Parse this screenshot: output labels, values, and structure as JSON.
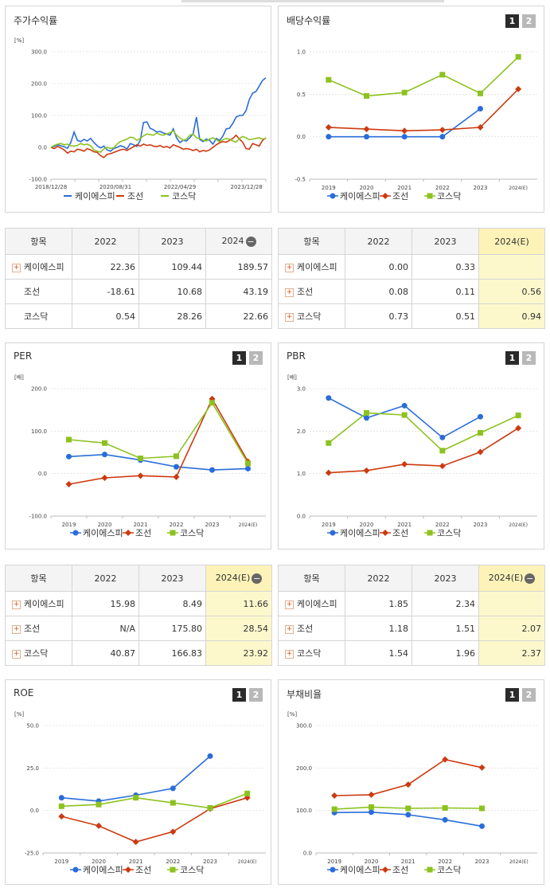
{
  "series_colors": {
    "keyi": "#2a6dd9",
    "joseon": "#cc3a10",
    "kosdaq": "#8cc21f"
  },
  "legend": [
    "케이에스피",
    "조선",
    "코스닥"
  ],
  "buttons": {
    "one": "1",
    "two": "2"
  },
  "panels": {
    "stock": {
      "title": "주가수익률",
      "unit": "[%]"
    },
    "dividend": {
      "title": "배당수익률",
      "unit": ""
    },
    "per": {
      "title": "PER",
      "unit": "[배]"
    },
    "pbr": {
      "title": "PBR",
      "unit": "[배]"
    },
    "roe": {
      "title": "ROE",
      "unit": "[%]"
    },
    "debt": {
      "title": "부채비율",
      "unit": "[%]"
    }
  },
  "chart_data": [
    {
      "id": "stock",
      "type": "line",
      "title": "주가수익률",
      "ylabel": "[%]",
      "y_ticks": [
        "300.0",
        "200.0",
        "100.0",
        "0.0",
        "-100.0"
      ],
      "ylim": [
        -100,
        300
      ],
      "x_ticks": [
        "2018/12/28",
        "2020/08/31",
        "2022/04/29",
        "2023/12/28"
      ],
      "series": [
        {
          "name": "케이에스피",
          "values": [
            0,
            3,
            8,
            5,
            2,
            -3,
            15,
            48,
            22,
            18,
            25,
            20,
            28,
            15,
            5,
            -2,
            4,
            -8,
            -12,
            -4,
            0,
            5,
            2,
            -5,
            12,
            8,
            3,
            22,
            78,
            80,
            60,
            55,
            48,
            50,
            45,
            42,
            38,
            58,
            30,
            15,
            22,
            20,
            30,
            42,
            95,
            25,
            18,
            26,
            22,
            10,
            28,
            22,
            35,
            58,
            60,
            75,
            95,
            100,
            100,
            115,
            150,
            170,
            175,
            192,
            210,
            218
          ]
        },
        {
          "name": "조선",
          "values": [
            0,
            -4,
            3,
            -2,
            -8,
            -18,
            -12,
            -14,
            -6,
            -8,
            -12,
            -4,
            -8,
            -14,
            -16,
            -26,
            -32,
            -22,
            -20,
            -16,
            -12,
            -8,
            -6,
            -10,
            -4,
            2,
            8,
            4,
            10,
            6,
            8,
            4,
            2,
            6,
            0,
            3,
            -2,
            8,
            4,
            0,
            -6,
            -4,
            -6,
            -10,
            -6,
            -14,
            -10,
            -12,
            -8,
            0,
            8,
            14,
            18,
            16,
            22,
            28,
            38,
            26,
            16,
            -4,
            -6,
            12,
            8,
            4,
            22,
            30
          ]
        },
        {
          "name": "코스닥",
          "values": [
            0,
            6,
            10,
            12,
            8,
            10,
            5,
            4,
            6,
            12,
            8,
            10,
            5,
            -8,
            -12,
            -15,
            -5,
            0,
            -3,
            -2,
            10,
            18,
            22,
            26,
            32,
            30,
            22,
            28,
            36,
            42,
            40,
            38,
            45,
            40,
            38,
            42,
            46,
            52,
            38,
            30,
            22,
            26,
            38,
            42,
            30,
            28,
            22,
            20,
            26,
            30,
            24,
            18,
            24,
            28,
            26,
            20,
            16,
            28,
            34,
            30,
            24,
            26,
            28,
            30,
            26,
            28
          ]
        }
      ]
    },
    {
      "id": "dividend",
      "type": "line",
      "title": "배당수익률",
      "categories": [
        "2019",
        "2020",
        "2021",
        "2022",
        "2023",
        "2024(E)"
      ],
      "y_ticks": [
        "1.0",
        "0.5",
        "0.0",
        "-0.5"
      ],
      "ylim": [
        -0.5,
        1.0
      ],
      "series": [
        {
          "name": "케이에스피",
          "values": [
            0.0,
            0.0,
            0.0,
            0.0,
            0.33,
            null
          ]
        },
        {
          "name": "조선",
          "values": [
            0.11,
            0.09,
            0.07,
            0.08,
            0.11,
            0.56
          ]
        },
        {
          "name": "코스닥",
          "values": [
            0.67,
            0.48,
            0.52,
            0.73,
            0.51,
            0.94
          ]
        }
      ]
    },
    {
      "id": "per",
      "type": "line",
      "title": "PER",
      "categories": [
        "2019",
        "2020",
        "2021",
        "2022",
        "2023",
        "2024(E)"
      ],
      "y_ticks": [
        "200.0",
        "100.0",
        "0.0",
        "-100.0"
      ],
      "ylim": [
        -100,
        200
      ],
      "series": [
        {
          "name": "케이에스피",
          "values": [
            40,
            45,
            32,
            15.98,
            8.49,
            11.66
          ]
        },
        {
          "name": "조선",
          "values": [
            -25,
            -10,
            -5,
            -8,
            175.8,
            28.54
          ]
        },
        {
          "name": "코스닥",
          "values": [
            80,
            72,
            36,
            40.87,
            166.83,
            23.92
          ]
        }
      ]
    },
    {
      "id": "pbr",
      "type": "line",
      "title": "PBR",
      "categories": [
        "2019",
        "2020",
        "2021",
        "2022",
        "2023",
        "2024(E)"
      ],
      "y_ticks": [
        "3.0",
        "2.0",
        "1.0",
        "0.0"
      ],
      "ylim": [
        0,
        3
      ],
      "series": [
        {
          "name": "케이에스피",
          "values": [
            2.78,
            2.31,
            2.6,
            1.85,
            2.34,
            null
          ]
        },
        {
          "name": "조선",
          "values": [
            1.02,
            1.07,
            1.22,
            1.18,
            1.51,
            2.07
          ]
        },
        {
          "name": "코스닥",
          "values": [
            1.72,
            2.43,
            2.38,
            1.54,
            1.96,
            2.37
          ]
        }
      ]
    },
    {
      "id": "roe",
      "type": "line",
      "title": "ROE",
      "categories": [
        "2019",
        "2020",
        "2021",
        "2022",
        "2023",
        "2024(E)"
      ],
      "y_ticks": [
        "50.0",
        "25.0",
        "0.0",
        "-25.0"
      ],
      "ylim": [
        -25,
        50
      ],
      "series": [
        {
          "name": "케이에스피",
          "values": [
            7.5,
            5.5,
            9,
            13,
            32,
            null
          ]
        },
        {
          "name": "조선",
          "values": [
            -3.5,
            -9,
            -18.5,
            -12.5,
            1,
            7.5
          ]
        },
        {
          "name": "코스닥",
          "values": [
            2.5,
            3.5,
            7.5,
            4.5,
            1.5,
            10
          ]
        }
      ]
    },
    {
      "id": "debt",
      "type": "line",
      "title": "부채비율",
      "categories": [
        "2019",
        "2020",
        "2021",
        "2022",
        "2023",
        "2024(E)"
      ],
      "y_ticks": [
        "300.0",
        "200.0",
        "100.0",
        "0.0"
      ],
      "ylim": [
        0,
        300
      ],
      "series": [
        {
          "name": "케이에스피",
          "values": [
            95,
            96,
            90,
            78,
            63,
            null
          ]
        },
        {
          "name": "조선",
          "values": [
            135,
            137,
            161,
            220,
            201,
            null
          ]
        },
        {
          "name": "코스닥",
          "values": [
            103,
            108,
            105,
            106,
            105,
            null
          ]
        }
      ]
    }
  ],
  "tables": [
    {
      "id": "stock",
      "header": [
        "항목",
        "2022",
        "2023",
        "2024"
      ],
      "collapse": true,
      "highlight_last": false,
      "rows": [
        {
          "name": "케이에스피",
          "plus": true,
          "values": [
            "22.36",
            "109.44",
            "189.57"
          ]
        },
        {
          "name": "조선",
          "plus": false,
          "values": [
            "-18.61",
            "10.68",
            "43.19"
          ]
        },
        {
          "name": "코스닥",
          "plus": false,
          "values": [
            "0.54",
            "28.26",
            "22.66"
          ]
        }
      ]
    },
    {
      "id": "dividend",
      "header": [
        "항목",
        "2022",
        "2023",
        "2024(E)"
      ],
      "collapse": false,
      "highlight_last": true,
      "rows": [
        {
          "name": "케이에스피",
          "plus": true,
          "values": [
            "0.00",
            "0.33",
            ""
          ]
        },
        {
          "name": "조선",
          "plus": true,
          "values": [
            "0.08",
            "0.11",
            "0.56"
          ]
        },
        {
          "name": "코스닥",
          "plus": true,
          "values": [
            "0.73",
            "0.51",
            "0.94"
          ]
        }
      ]
    },
    {
      "id": "per",
      "header": [
        "항목",
        "2022",
        "2023",
        "2024(E)"
      ],
      "collapse": true,
      "highlight_last": true,
      "rows": [
        {
          "name": "케이에스피",
          "plus": true,
          "values": [
            "15.98",
            "8.49",
            "11.66"
          ]
        },
        {
          "name": "조선",
          "plus": true,
          "values": [
            "N/A",
            "175.80",
            "28.54"
          ]
        },
        {
          "name": "코스닥",
          "plus": true,
          "values": [
            "40.87",
            "166.83",
            "23.92"
          ]
        }
      ]
    },
    {
      "id": "pbr",
      "header": [
        "항목",
        "2022",
        "2023",
        "2024(E)"
      ],
      "collapse": true,
      "highlight_last": true,
      "rows": [
        {
          "name": "케이에스피",
          "plus": true,
          "values": [
            "1.85",
            "2.34",
            ""
          ]
        },
        {
          "name": "조선",
          "plus": true,
          "values": [
            "1.18",
            "1.51",
            "2.07"
          ]
        },
        {
          "name": "코스닥",
          "plus": true,
          "values": [
            "1.54",
            "1.96",
            "2.37"
          ]
        }
      ]
    }
  ]
}
